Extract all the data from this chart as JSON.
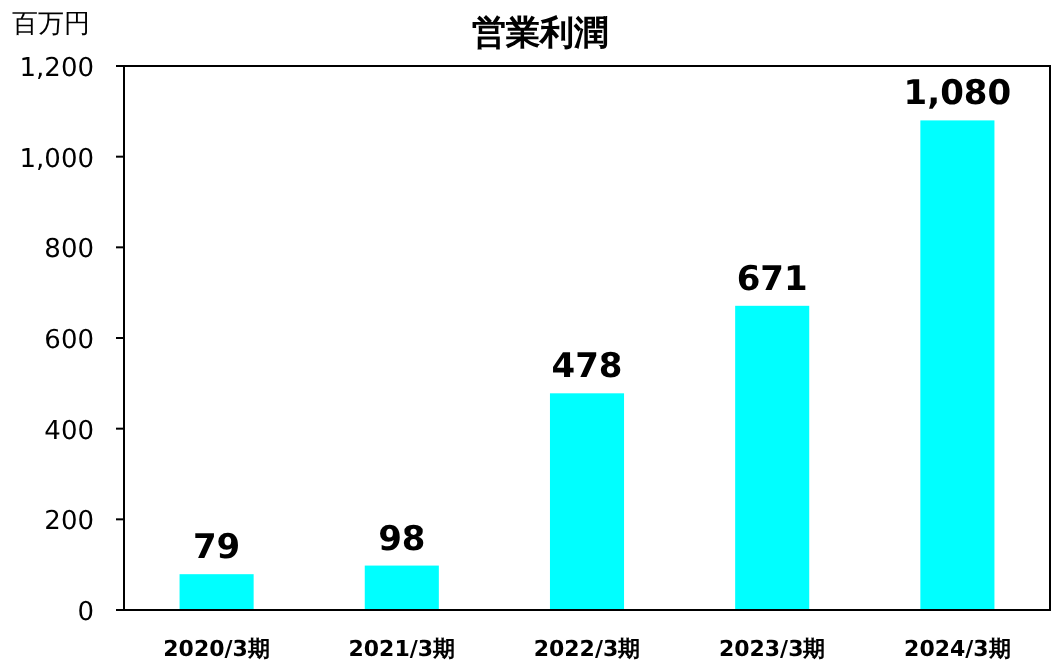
{
  "chart_data": {
    "type": "bar",
    "title": "営業利潤",
    "ylabel": "百万円",
    "categories": [
      "2020/3期",
      "2021/3期",
      "2022/3期",
      "2023/3期",
      "2024/3期"
    ],
    "values": [
      79,
      98,
      478,
      671,
      1080
    ],
    "value_labels": [
      "79",
      "98",
      "478",
      "671",
      "1,080"
    ],
    "color": "#00ffff",
    "ylim": [
      0,
      1200
    ],
    "yticks": [
      0,
      200,
      400,
      600,
      800,
      {
        "value": 1000,
        "label": "1,000"
      },
      {
        "value": 1200,
        "label": "1,200"
      }
    ],
    "grid": false
  }
}
